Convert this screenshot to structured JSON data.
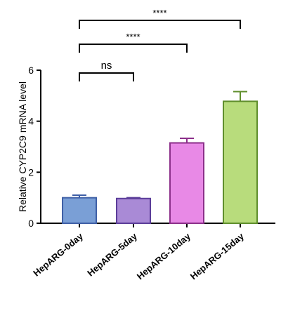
{
  "chart_data": {
    "type": "bar",
    "categories": [
      "HepARG-0day",
      "HepARG-5day",
      "HepARG-10day",
      "HepARG-15day"
    ],
    "values": [
      1.0,
      0.97,
      3.15,
      4.78
    ],
    "errors": [
      0.1,
      0.03,
      0.18,
      0.38
    ],
    "ylabel": "Relative CYP2C9 mRNA level",
    "xlabel": "",
    "ylim": [
      0,
      6
    ],
    "yticks": [
      0,
      2,
      4,
      6
    ],
    "grid": false,
    "legend": "none",
    "colors": {
      "fills": [
        "#7a9fd6",
        "#a98ad6",
        "#e889e6",
        "#b8dc7c"
      ],
      "strokes": [
        "#3e5fa6",
        "#5b3d99",
        "#8c2f8a",
        "#5f8e2c"
      ],
      "axis": "#000000"
    },
    "annotations": [
      {
        "from": 0,
        "to": 1,
        "label": "ns"
      },
      {
        "from": 0,
        "to": 2,
        "label": "****"
      },
      {
        "from": 0,
        "to": 3,
        "label": "****"
      }
    ]
  }
}
